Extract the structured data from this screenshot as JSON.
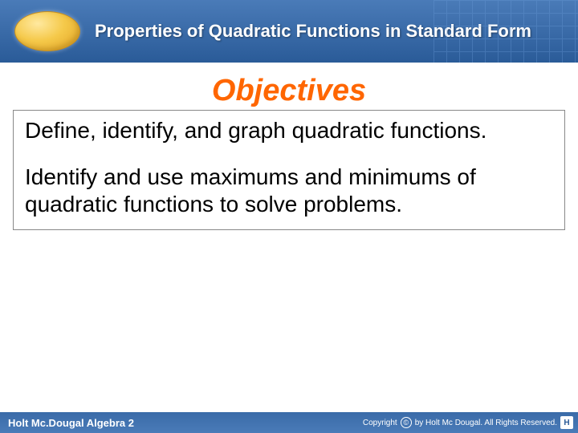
{
  "header": {
    "title": "Properties of Quadratic Functions in Standard Form"
  },
  "main": {
    "section_title": "Objectives",
    "objectives": [
      "Define, identify, and graph quadratic functions.",
      "Identify and use maximums and minimums of quadratic functions to solve problems."
    ]
  },
  "footer": {
    "left": "Holt Mc.Dougal Algebra 2",
    "copyright_prefix": "Copyright",
    "copyright_text": "by Holt Mc Dougal. All Rights Reserved.",
    "logo_text": "H"
  },
  "colors": {
    "header_gradient_top": "#4a7bb8",
    "header_gradient_bottom": "#2a5b98",
    "accent_orange": "#ff6600",
    "logo_gold": "#f5c94a",
    "box_border": "#888888",
    "text": "#000000",
    "white": "#ffffff"
  },
  "fonts": {
    "title_size_pt": 22,
    "section_title_size_pt": 38,
    "body_size_pt": 28,
    "footer_size_pt": 13
  }
}
